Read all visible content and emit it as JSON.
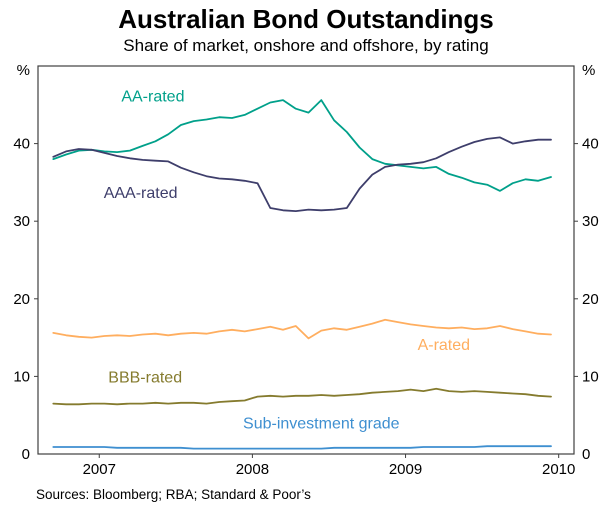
{
  "page": {
    "title": "Australian Bond Outstandings",
    "subtitle": "Share of market, onshore and offshore, by rating",
    "source": "Sources: Bloomberg; RBA; Standard & Poor’s"
  },
  "chart_data": {
    "type": "line",
    "title": "Australian Bond Outstandings",
    "subtitle": "Share of market, onshore and offshore, by rating",
    "xlabel": "",
    "ylabel_left": "%",
    "ylabel_right": "%",
    "grid": false,
    "legend_position": "inline-labels",
    "frame_color": "#3f3f3f",
    "xlim": [
      2006.6,
      2010.1
    ],
    "ylim": [
      0,
      50
    ],
    "xticks": [
      2007,
      2008,
      2009,
      2010
    ],
    "yticks": [
      0,
      10,
      20,
      30,
      40
    ],
    "x_start": 2006.7,
    "x_step": 0.08333,
    "series": [
      {
        "name": "AA-rated",
        "color": "#00A08A",
        "label_x": 2007.35,
        "label_y": 45.4,
        "values": [
          38.0,
          38.6,
          39.1,
          39.2,
          39.0,
          38.9,
          39.1,
          39.7,
          40.3,
          41.2,
          42.4,
          42.9,
          43.1,
          43.4,
          43.3,
          43.7,
          44.5,
          45.3,
          45.6,
          44.5,
          44.0,
          45.6,
          43.0,
          41.5,
          39.5,
          38.0,
          37.4,
          37.2,
          37.0,
          36.8,
          37.0,
          36.1,
          35.6,
          35.0,
          34.7,
          33.9,
          34.9,
          35.4,
          35.2,
          35.7
        ]
      },
      {
        "name": "AAA-rated",
        "color": "#3E3E6B",
        "label_x": 2007.27,
        "label_y": 33.0,
        "values": [
          38.3,
          39.0,
          39.3,
          39.2,
          38.8,
          38.4,
          38.1,
          37.9,
          37.8,
          37.7,
          36.9,
          36.3,
          35.8,
          35.5,
          35.4,
          35.2,
          34.9,
          31.7,
          31.4,
          31.3,
          31.5,
          31.4,
          31.5,
          31.7,
          34.2,
          36.0,
          37.0,
          37.3,
          37.4,
          37.6,
          38.1,
          38.9,
          39.6,
          40.2,
          40.6,
          40.8,
          40.0,
          40.3,
          40.5,
          40.5
        ]
      },
      {
        "name": "A-rated",
        "color": "#FFAE5F",
        "label_x": 2009.25,
        "label_y": 13.4,
        "values": [
          15.6,
          15.3,
          15.1,
          15.0,
          15.2,
          15.3,
          15.2,
          15.4,
          15.5,
          15.3,
          15.5,
          15.6,
          15.5,
          15.8,
          16.0,
          15.8,
          16.1,
          16.4,
          16.0,
          16.5,
          14.9,
          15.9,
          16.2,
          16.0,
          16.4,
          16.8,
          17.3,
          17.0,
          16.7,
          16.5,
          16.3,
          16.2,
          16.3,
          16.1,
          16.2,
          16.5,
          16.1,
          15.8,
          15.5,
          15.4
        ]
      },
      {
        "name": "BBB-rated",
        "color": "#857B2E",
        "label_x": 2007.3,
        "label_y": 9.2,
        "values": [
          6.5,
          6.4,
          6.4,
          6.5,
          6.5,
          6.4,
          6.5,
          6.5,
          6.6,
          6.5,
          6.6,
          6.6,
          6.5,
          6.7,
          6.8,
          6.9,
          7.4,
          7.5,
          7.4,
          7.5,
          7.5,
          7.6,
          7.5,
          7.6,
          7.7,
          7.9,
          8.0,
          8.1,
          8.3,
          8.1,
          8.4,
          8.1,
          8.0,
          8.1,
          8.0,
          7.9,
          7.8,
          7.7,
          7.5,
          7.4
        ]
      },
      {
        "name": "Sub-investment grade",
        "color": "#3E8FD0",
        "label_x": 2008.45,
        "label_y": 3.3,
        "values": [
          0.9,
          0.9,
          0.9,
          0.9,
          0.9,
          0.8,
          0.8,
          0.8,
          0.8,
          0.8,
          0.8,
          0.7,
          0.7,
          0.7,
          0.7,
          0.7,
          0.7,
          0.7,
          0.7,
          0.7,
          0.7,
          0.7,
          0.8,
          0.8,
          0.8,
          0.8,
          0.8,
          0.8,
          0.8,
          0.9,
          0.9,
          0.9,
          0.9,
          0.9,
          1.0,
          1.0,
          1.0,
          1.0,
          1.0,
          1.0
        ]
      }
    ]
  }
}
